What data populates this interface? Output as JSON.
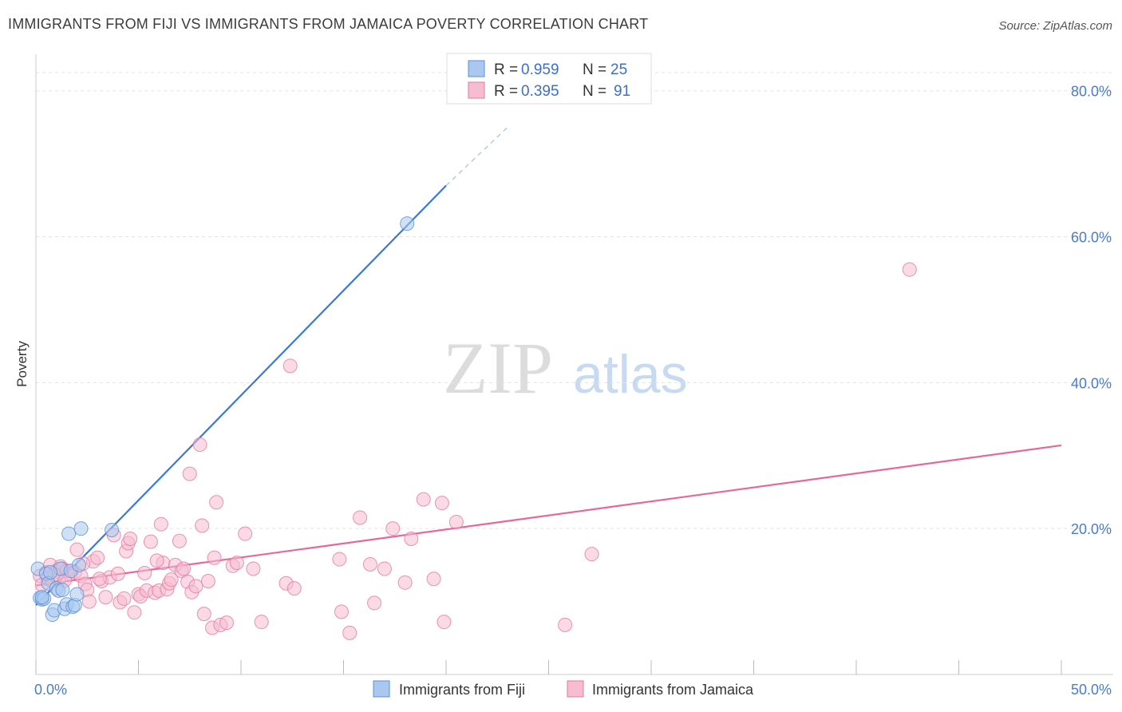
{
  "title": "IMMIGRANTS FROM FIJI VS IMMIGRANTS FROM JAMAICA POVERTY CORRELATION CHART",
  "source": "Source: ZipAtlas.com",
  "watermark": {
    "zip": "ZIP",
    "atlas": "atlas"
  },
  "chart_data": {
    "type": "scatter",
    "ylabel": "Poverty",
    "xlabel": "",
    "xlim": [
      0,
      50
    ],
    "ylim": [
      0,
      85
    ],
    "x_tick_labels": [
      "0.0%",
      "50.0%"
    ],
    "y_ticks": [
      20,
      40,
      60,
      80
    ],
    "y_tick_labels": [
      "20.0%",
      "40.0%",
      "60.0%",
      "80.0%"
    ],
    "grid": true,
    "legend_placement": "top-center",
    "legend": [
      {
        "r_label": "R =",
        "r_value": "0.959",
        "n_label": "N =",
        "n_value": "25"
      },
      {
        "r_label": "R =",
        "r_value": "0.395",
        "n_label": "N =",
        "n_value": "91"
      }
    ],
    "series": [
      {
        "name": "Immigrants from Fiji",
        "color": "#5b8fd6",
        "fill": "#aac8ef",
        "trend": {
          "x": [
            0,
            20
          ],
          "y": [
            9.5,
            67
          ],
          "dashed_to": [
            23,
            75
          ]
        },
        "points": [
          [
            0.1,
            14.5
          ],
          [
            0.2,
            10.5
          ],
          [
            0.3,
            10.3
          ],
          [
            0.4,
            10.4
          ],
          [
            0.5,
            13.8
          ],
          [
            0.6,
            12.5
          ],
          [
            0.8,
            8.2
          ],
          [
            0.9,
            8.8
          ],
          [
            1.0,
            11.8
          ],
          [
            1.1,
            11.5
          ],
          [
            1.2,
            14.5
          ],
          [
            1.4,
            9.0
          ],
          [
            1.5,
            9.6
          ],
          [
            1.6,
            19.3
          ],
          [
            1.7,
            14.2
          ],
          [
            1.8,
            9.3
          ],
          [
            1.9,
            9.5
          ],
          [
            2.0,
            11.0
          ],
          [
            2.1,
            15.0
          ],
          [
            2.2,
            20.0
          ],
          [
            3.7,
            19.8
          ],
          [
            18.1,
            61.8
          ],
          [
            0.3,
            10.6
          ],
          [
            1.3,
            11.6
          ],
          [
            0.7,
            14.0
          ]
        ]
      },
      {
        "name": "Immigrants from Jamaica",
        "color": "#e47aa0",
        "fill": "#f6bcd0",
        "trend": {
          "x": [
            0,
            50
          ],
          "y": [
            12.2,
            31.4
          ]
        },
        "points": [
          [
            0.2,
            13.5
          ],
          [
            0.3,
            12.3
          ],
          [
            0.5,
            14.0
          ],
          [
            0.6,
            13.2
          ],
          [
            0.7,
            15.0
          ],
          [
            0.8,
            12.8
          ],
          [
            1.0,
            14.2
          ],
          [
            1.1,
            13.0
          ],
          [
            1.2,
            14.8
          ],
          [
            1.3,
            14.5
          ],
          [
            1.5,
            14.2
          ],
          [
            1.7,
            13.8
          ],
          [
            1.9,
            14.0
          ],
          [
            2.0,
            17.1
          ],
          [
            2.2,
            13.5
          ],
          [
            2.4,
            12.4
          ],
          [
            2.5,
            11.6
          ],
          [
            2.6,
            10.0
          ],
          [
            2.8,
            15.5
          ],
          [
            3.0,
            16.0
          ],
          [
            3.2,
            12.8
          ],
          [
            3.4,
            10.6
          ],
          [
            3.6,
            13.3
          ],
          [
            3.8,
            19.1
          ],
          [
            4.0,
            13.8
          ],
          [
            4.1,
            9.9
          ],
          [
            4.3,
            10.4
          ],
          [
            4.4,
            16.9
          ],
          [
            4.5,
            18.0
          ],
          [
            4.6,
            18.6
          ],
          [
            4.8,
            8.5
          ],
          [
            5.0,
            11.0
          ],
          [
            5.1,
            10.7
          ],
          [
            5.3,
            13.9
          ],
          [
            5.4,
            11.5
          ],
          [
            5.6,
            18.2
          ],
          [
            5.8,
            11.2
          ],
          [
            6.0,
            11.5
          ],
          [
            6.1,
            20.6
          ],
          [
            6.2,
            15.3
          ],
          [
            6.4,
            11.7
          ],
          [
            6.5,
            12.5
          ],
          [
            6.6,
            13.0
          ],
          [
            6.8,
            15.0
          ],
          [
            7.0,
            18.3
          ],
          [
            7.1,
            14.2
          ],
          [
            7.2,
            14.5
          ],
          [
            7.4,
            12.7
          ],
          [
            7.6,
            11.3
          ],
          [
            7.8,
            12.1
          ],
          [
            8.0,
            31.5
          ],
          [
            8.1,
            20.4
          ],
          [
            8.2,
            8.3
          ],
          [
            7.5,
            27.5
          ],
          [
            8.4,
            12.8
          ],
          [
            8.6,
            6.4
          ],
          [
            8.7,
            16.0
          ],
          [
            8.8,
            23.6
          ],
          [
            9.0,
            6.8
          ],
          [
            9.3,
            7.1
          ],
          [
            9.6,
            14.9
          ],
          [
            9.8,
            15.3
          ],
          [
            10.2,
            19.3
          ],
          [
            10.6,
            14.5
          ],
          [
            11.0,
            7.2
          ],
          [
            12.2,
            12.5
          ],
          [
            12.4,
            42.3
          ],
          [
            12.6,
            11.8
          ],
          [
            14.8,
            15.8
          ],
          [
            14.9,
            8.6
          ],
          [
            15.3,
            5.7
          ],
          [
            15.8,
            21.5
          ],
          [
            16.3,
            15.1
          ],
          [
            16.5,
            9.8
          ],
          [
            17.0,
            14.5
          ],
          [
            17.4,
            20.0
          ],
          [
            18.0,
            12.6
          ],
          [
            18.3,
            18.6
          ],
          [
            18.9,
            24.0
          ],
          [
            19.4,
            13.1
          ],
          [
            19.8,
            23.5
          ],
          [
            19.9,
            7.2
          ],
          [
            20.5,
            20.9
          ],
          [
            25.8,
            6.8
          ],
          [
            27.1,
            16.5
          ],
          [
            42.6,
            55.5
          ],
          [
            0.9,
            13.7
          ],
          [
            1.4,
            12.9
          ],
          [
            2.3,
            15.2
          ],
          [
            3.1,
            13.1
          ],
          [
            5.9,
            15.6
          ]
        ]
      }
    ]
  }
}
